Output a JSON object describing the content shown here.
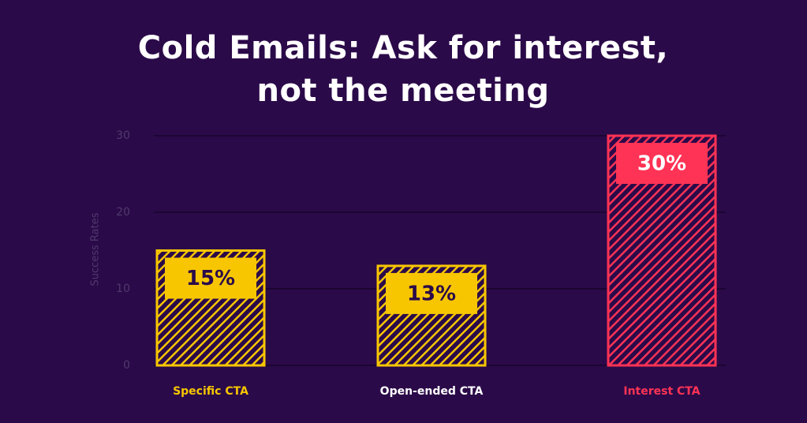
{
  "chart_data": {
    "type": "bar",
    "title": "Cold Emails: Ask for interest, not the meeting",
    "y_label": "Success Rates",
    "categories": [
      "Specific CTA",
      "Open-ended CTA",
      "Interest CTA"
    ],
    "values": [
      15,
      13,
      30
    ],
    "value_labels": [
      "15%",
      "13%",
      "30%"
    ],
    "colors": [
      "#f7c600",
      "#f7c600",
      "#ff3355"
    ],
    "category_label_colors": [
      "#f7c600",
      "#ffffff",
      "#ff3355"
    ],
    "value_label_colors": [
      "#2b0a49",
      "#2b0a49",
      "#ffffff"
    ],
    "ylim": [
      0,
      30
    ],
    "yticks": [
      0,
      10,
      20,
      30
    ],
    "grid": true
  }
}
